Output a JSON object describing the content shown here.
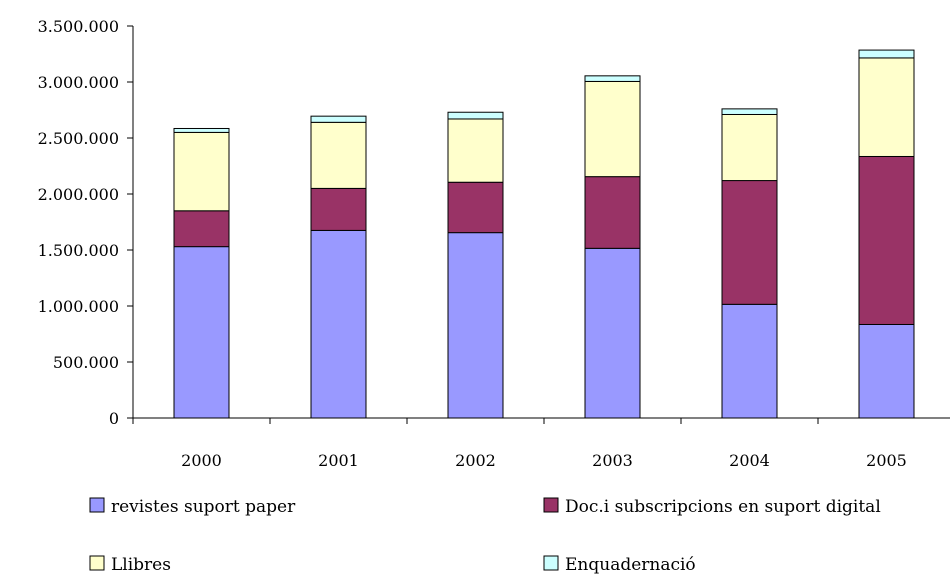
{
  "chart_data": {
    "type": "bar",
    "stacked": true,
    "title": "",
    "xlabel": "",
    "ylabel": "",
    "categories": [
      "2000",
      "2001",
      "2002",
      "2003",
      "2004",
      "2005"
    ],
    "ylim": [
      0,
      3500000
    ],
    "yticks": [
      0,
      500000,
      1000000,
      1500000,
      2000000,
      2500000,
      3000000,
      3500000
    ],
    "ytick_labels": [
      "0",
      "500.000",
      "1.000.000",
      "1.500.000",
      "2.000.000",
      "2.500.000",
      "3.000.000",
      "3.500.000"
    ],
    "grid": false,
    "legend_position": "bottom",
    "series": [
      {
        "name": "revistes suport paper",
        "color": "#9999ff",
        "values": [
          1530000,
          1675000,
          1655000,
          1515000,
          1015000,
          835000
        ]
      },
      {
        "name": "Doc.i subscripcions en suport digital",
        "color": "#993366",
        "values": [
          320000,
          375000,
          450000,
          640000,
          1105000,
          1500000
        ]
      },
      {
        "name": "Llibres",
        "color": "#ffffcc",
        "values": [
          700000,
          590000,
          565000,
          850000,
          590000,
          880000
        ]
      },
      {
        "name": "Enquadernació",
        "color": "#ccffff",
        "values": [
          35000,
          55000,
          60000,
          50000,
          50000,
          70000
        ]
      }
    ]
  }
}
